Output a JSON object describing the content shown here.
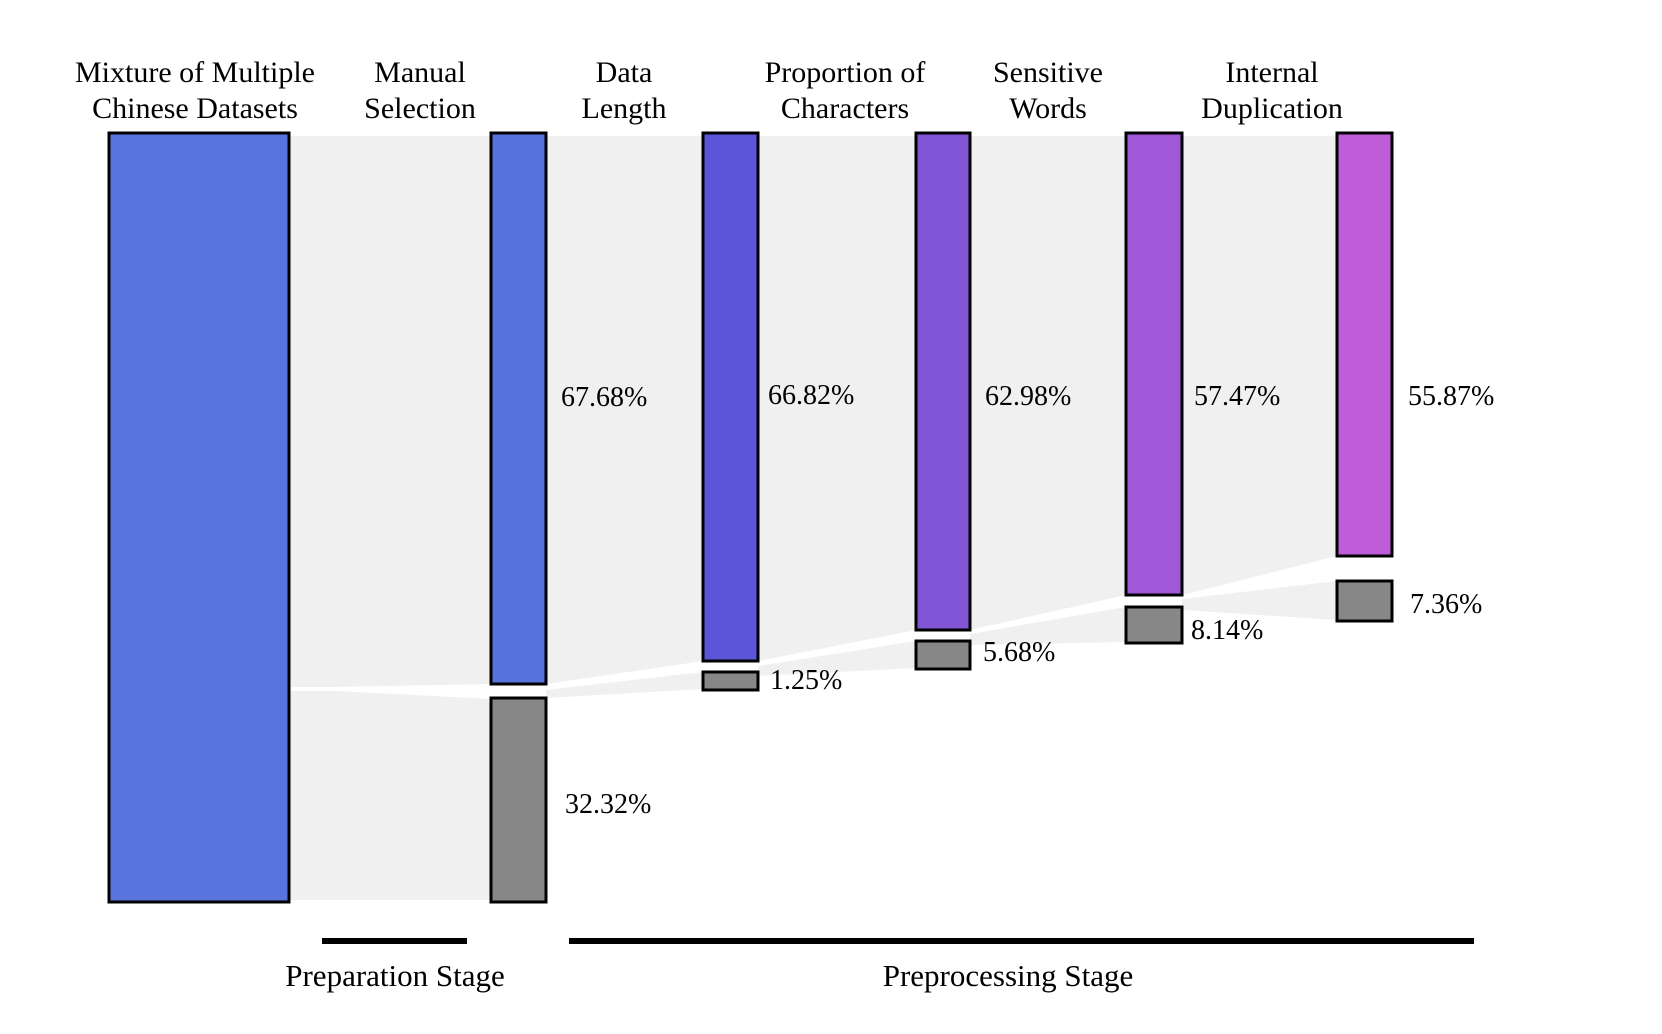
{
  "figure": {
    "headers": [
      {
        "line1": "Mixture of Multiple",
        "line2": "Chinese Datasets"
      },
      {
        "line1": "Manual",
        "line2": "Selection"
      },
      {
        "line1": "Data",
        "line2": "Length"
      },
      {
        "line1": "Proportion of",
        "line2": "Characters"
      },
      {
        "line1": "Sensitive",
        "line2": "Words"
      },
      {
        "line1": "Internal",
        "line2": "Duplication"
      }
    ],
    "retained_labels": [
      "67.68%",
      "66.82%",
      "62.98%",
      "57.47%",
      "55.87%"
    ],
    "removed_labels": [
      "32.32%",
      "1.25%",
      "5.68%",
      "8.14%",
      "7.36%"
    ],
    "stage_labels": {
      "preparation": "Preparation Stage",
      "preprocessing": "Preprocessing Stage"
    },
    "colors": {
      "bars": [
        "#5A74DD",
        "#5873DE",
        "#5C55D9",
        "#8156D6",
        "#A158D8",
        "#C15CD9"
      ],
      "removed_gray": "#878787",
      "flow_gray": "#F0F0F0",
      "border": "#000000",
      "background": "#FFFFFF",
      "text": "#000000"
    }
  },
  "chart_data": {
    "type": "funnel",
    "title": "",
    "stages": [
      {
        "name": "Mixture of Multiple Chinese Datasets",
        "retained_pct": 100,
        "removed_pct": null
      },
      {
        "name": "Manual Selection",
        "retained_pct": 67.68,
        "removed_pct": 32.32
      },
      {
        "name": "Data Length",
        "retained_pct": 66.82,
        "removed_pct": 1.25
      },
      {
        "name": "Proportion of Characters",
        "retained_pct": 62.98,
        "removed_pct": 5.68
      },
      {
        "name": "Sensitive Words",
        "retained_pct": 57.47,
        "removed_pct": 8.14
      },
      {
        "name": "Internal Duplication",
        "retained_pct": 55.87,
        "removed_pct": 7.36
      }
    ],
    "phases": [
      {
        "label": "Preparation Stage",
        "covers_stages": [
          0,
          1
        ]
      },
      {
        "label": "Preprocessing Stage",
        "covers_stages": [
          2,
          3,
          4,
          5
        ]
      }
    ],
    "legend": "none",
    "grid": false
  }
}
